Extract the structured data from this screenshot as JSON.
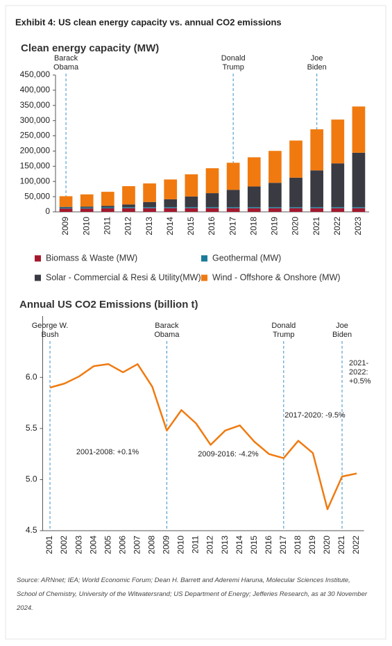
{
  "exhibit_title": "Exhibit 4: US clean energy capacity vs. annual CO2 emissions",
  "chart_data": [
    {
      "type": "bar",
      "stacked": true,
      "title": "Clean energy capacity (MW)",
      "categories": [
        "2009",
        "2010",
        "2011",
        "2012",
        "2013",
        "2014",
        "2015",
        "2016",
        "2017",
        "2018",
        "2019",
        "2020",
        "2021",
        "2022",
        "2023"
      ],
      "series": [
        {
          "name": "Biomass & Waste (MW)",
          "color": "#a3182d",
          "values": [
            11000,
            11000,
            11500,
            12000,
            12000,
            12000,
            12000,
            12000,
            12000,
            12000,
            12000,
            12000,
            12000,
            12000,
            12000
          ]
        },
        {
          "name": "Geothermal (MW)",
          "color": "#1b7a9a",
          "values": [
            3500,
            3500,
            3500,
            3500,
            3500,
            3500,
            3500,
            3500,
            3500,
            3500,
            3500,
            3500,
            3500,
            3500,
            3500
          ]
        },
        {
          "name": "Solar - Commercial & Resi & Utility(MW)",
          "color": "#3a3a42",
          "values": [
            2000,
            3000,
            5000,
            9000,
            17000,
            26000,
            35000,
            46000,
            57000,
            68000,
            80000,
            97000,
            121000,
            144000,
            179000
          ]
        },
        {
          "name": "Wind - Offshore & Onshore (MW)",
          "color": "#f07a10",
          "values": [
            35000,
            40000,
            46000,
            60000,
            61000,
            65000,
            73000,
            82000,
            89000,
            96000,
            105000,
            122000,
            135000,
            144000,
            152000
          ]
        }
      ],
      "ylim": [
        0,
        450000
      ],
      "yticks": [
        0,
        {
          "value": 50000,
          "label": "50,000"
        },
        {
          "value": 100000,
          "label": "100,000"
        },
        {
          "value": 150000,
          "label": "150,000"
        },
        {
          "value": 200000,
          "label": "200,000"
        },
        {
          "value": 250000,
          "label": "250,000"
        },
        {
          "value": 300000,
          "label": "300,000"
        },
        {
          "value": 350000,
          "label": "350,000"
        },
        {
          "value": 400000,
          "label": "400,000"
        },
        {
          "value": 450000,
          "label": "450,000"
        }
      ],
      "grid": false,
      "legend": "bottom",
      "annotations": [
        {
          "x": "2009",
          "label": [
            "Barack",
            "Obama"
          ]
        },
        {
          "x": "2017",
          "label": [
            "Donald",
            "Trump"
          ]
        },
        {
          "x": "2021",
          "label": [
            "Joe",
            "Biden"
          ]
        }
      ]
    },
    {
      "type": "line",
      "title": "Annual US CO2 Emissions (billion t)",
      "categories": [
        "2001",
        "2002",
        "2003",
        "2004",
        "2005",
        "2006",
        "2007",
        "2008",
        "2009",
        "2010",
        "2011",
        "2012",
        "2013",
        "2014",
        "2015",
        "2016",
        "2017",
        "2018",
        "2019",
        "2020",
        "2021",
        "2022"
      ],
      "color": "#f07a10",
      "values": [
        5.9,
        5.94,
        6.01,
        6.11,
        6.13,
        6.05,
        6.13,
        5.91,
        5.48,
        5.68,
        5.55,
        5.34,
        5.48,
        5.53,
        5.37,
        5.25,
        5.21,
        5.38,
        5.26,
        4.71,
        5.03,
        5.06
      ],
      "ylim": [
        4.5,
        6.6
      ],
      "yticks": [
        4.5,
        {
          "value": 5,
          "label": "5.0"
        },
        5.5,
        {
          "value": 6,
          "label": "6.0"
        }
      ],
      "grid": false,
      "annotations": [
        {
          "x": "2001",
          "label": [
            "George W.",
            "Bush"
          ]
        },
        {
          "x": "2009",
          "label": [
            "Barack",
            "Obama"
          ]
        },
        {
          "x": "2017",
          "label": [
            "Donald",
            "Trump"
          ]
        },
        {
          "x": "2021",
          "label": [
            "Joe",
            "Biden"
          ]
        }
      ],
      "notes": [
        [
          "2001-2008: +0.1%"
        ],
        [
          "2009-2016: -4.2%"
        ],
        [
          "2017-2020: -9.5%"
        ],
        [
          "2021-",
          "2022:",
          "+0.5%"
        ]
      ]
    }
  ],
  "source": "Source: ARNnet; IEA; World Economic Forum; Dean H. Barrett and Aderemi Haruna, Molecular Sciences Institute, School of Chemistry, University of the Witwatersrand; US Department of Energy; Jefferies Research, as at 30 November 2024."
}
